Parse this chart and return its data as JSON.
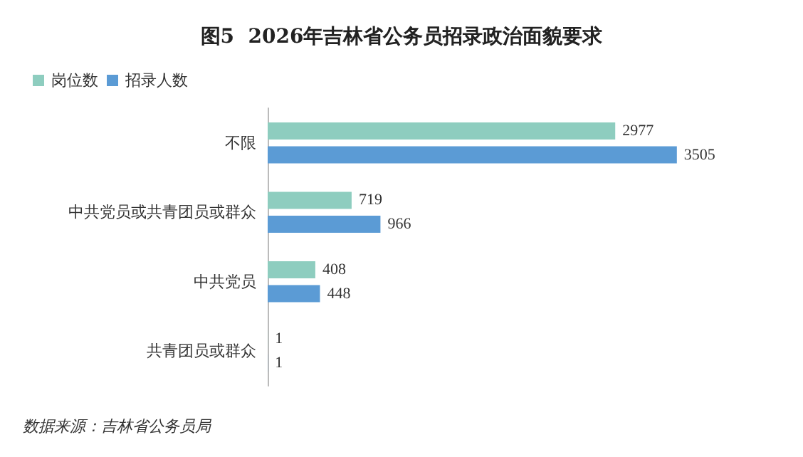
{
  "chart_data": {
    "type": "bar",
    "orientation": "horizontal",
    "title": "图5  2026年吉林省公务员招录政治面貌要求",
    "categories": [
      "不限",
      "中共党员或共青团员或群众",
      "中共党员",
      "共青团员或群众"
    ],
    "series": [
      {
        "name": "岗位数",
        "color": "#8ecdbf",
        "values": [
          2977,
          719,
          408,
          1
        ]
      },
      {
        "name": "招录人数",
        "color": "#5b9bd5",
        "values": [
          3505,
          966,
          448,
          1
        ]
      }
    ],
    "data_labels": true,
    "legend": "top left",
    "annotations": [
      "数据来源：吉林省公务员局"
    ]
  }
}
